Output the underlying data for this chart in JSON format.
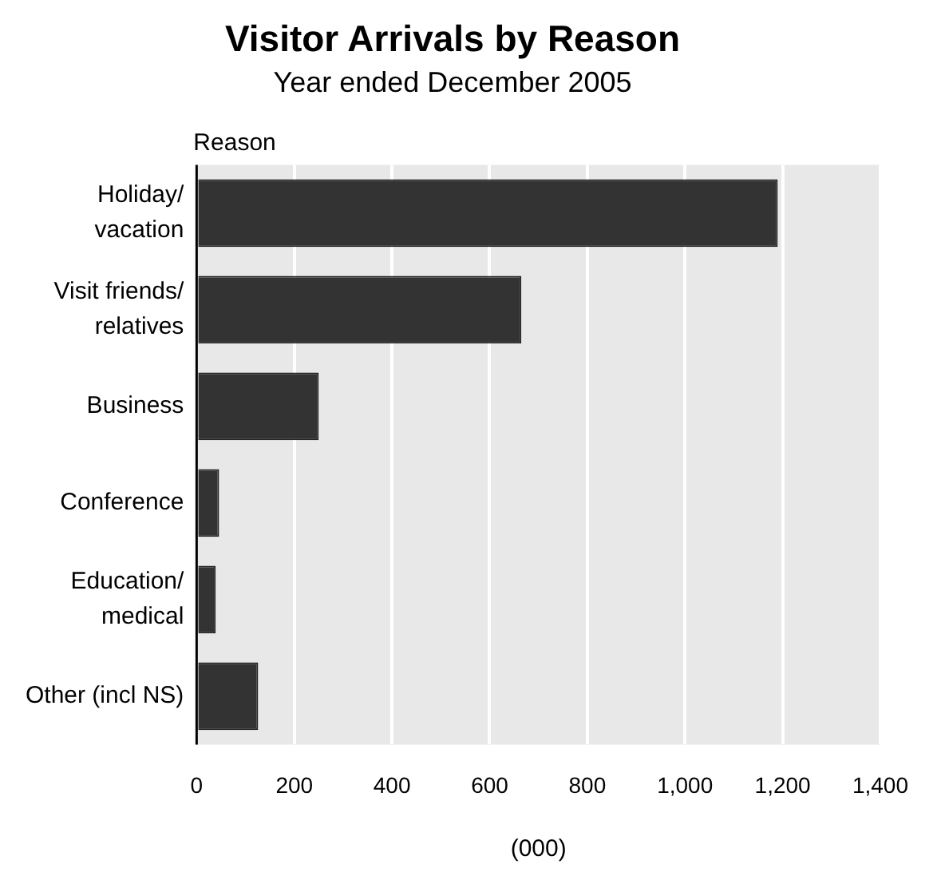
{
  "chart_data": {
    "type": "bar",
    "orientation": "horizontal",
    "title": "Visitor Arrivals by Reason",
    "subtitle": "Year ended December 2005",
    "ylabel": "Reason",
    "xlabel": "(000)",
    "categories": [
      "Holiday/\nvacation",
      "Visit friends/\nrelatives",
      "Business",
      "Conference",
      "Education/\nmedical",
      "Other (incl NS)"
    ],
    "values": [
      1190,
      665,
      250,
      46,
      39,
      126
    ],
    "color": "#333333",
    "xlim": [
      0,
      1400
    ],
    "xticks": [
      0,
      200,
      400,
      600,
      800,
      {
        "value": 1000,
        "label": "1,000"
      },
      {
        "value": 1200,
        "label": "1,200"
      },
      {
        "value": 1400,
        "label": "1,400"
      }
    ],
    "grid": "x",
    "legend": false
  }
}
